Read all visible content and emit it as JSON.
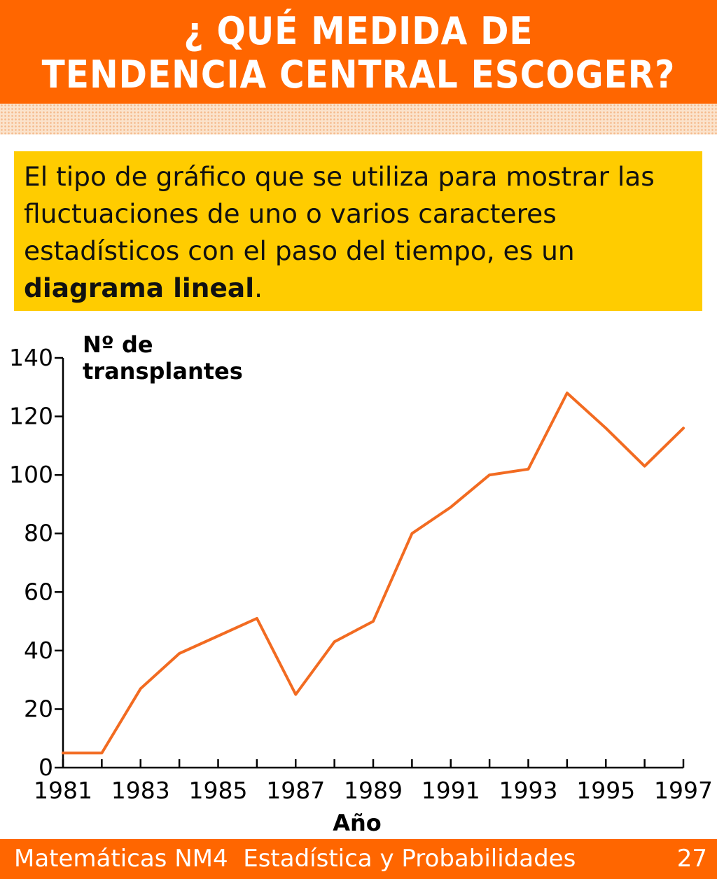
{
  "header": {
    "title_line1": "¿ QUÉ MEDIDA DE",
    "title_line2": "TENDENCIA CENTRAL ESCOGER?"
  },
  "info": {
    "text_before": "El tipo de gráfico que se utiliza para mostrar las fluctuaciones de uno o varios caracteres estadísticos con el paso del tiempo, es un",
    "text_bold": "diagrama lineal",
    "text_after": "."
  },
  "footer": {
    "subject": "Matemáticas NM4",
    "topic": "Estadística y Probabilidades",
    "page": "27"
  },
  "colors": {
    "brand_orange": "#ff6600",
    "box_yellow": "#ffcc00",
    "line_orange": "#f26b21"
  },
  "chart_data": {
    "type": "line",
    "title": "",
    "ylabel_line1": "Nº de",
    "ylabel_line2": "transplantes",
    "xlabel": "Año",
    "ylim": [
      0,
      140
    ],
    "yticks": [
      0,
      20,
      40,
      60,
      80,
      100,
      120,
      140
    ],
    "xlim": [
      1981,
      1997
    ],
    "xtick_labels": [
      "1981",
      "1983",
      "1985",
      "1987",
      "1989",
      "1991",
      "1993",
      "1995",
      "1997"
    ],
    "grid": false,
    "x": [
      1981,
      1982,
      1983,
      1984,
      1985,
      1986,
      1987,
      1988,
      1989,
      1990,
      1991,
      1992,
      1993,
      1994,
      1995,
      1996,
      1997
    ],
    "series": [
      {
        "values": [
          5,
          5,
          27,
          39,
          45,
          51,
          25,
          43,
          50,
          80,
          89,
          100,
          102,
          128,
          116,
          103,
          116
        ]
      }
    ]
  }
}
